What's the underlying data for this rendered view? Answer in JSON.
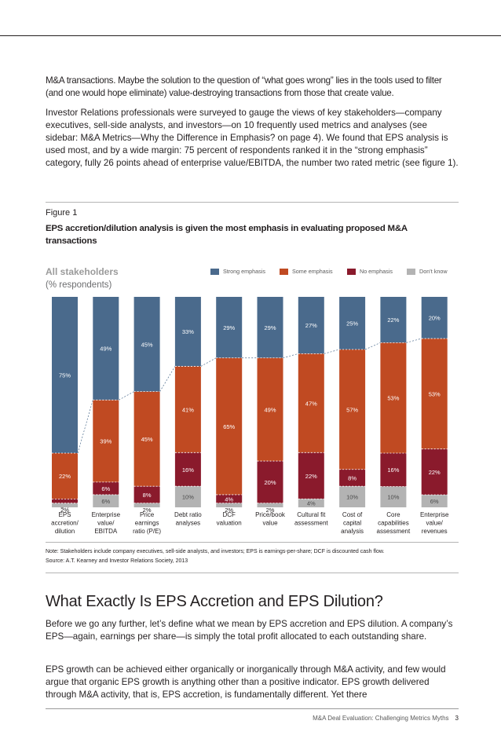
{
  "intro": {
    "para1": "M&A transactions. Maybe the solution to the question of “what goes wrong” lies in the tools used to filter (and one would hope eliminate) value-destroying transactions from those that create value.",
    "para2": "Investor Relations professionals were surveyed to gauge the views of key stakeholders—company executives, sell-side analysts, and investors—on 10 frequently used metrics and analyses (see sidebar: M&A Metrics—Why the Difference in Emphasis? on page 4). We found that EPS analysis is used most, and by a wide margin: 75 percent of respondents ranked it in the “strong emphasis” category, fully 26 points ahead of enterprise value/EBITDA, the number two rated metric (see figure 1)."
  },
  "figure": {
    "label": "Figure 1",
    "title": "EPS accretion/dilution analysis is given the most emphasis in evaluating proposed M&A transactions",
    "stakeholders_title": "All stakeholders",
    "stakeholders_sub": "(% respondents)",
    "note": "Note: Stakeholders include company executives, sell-side analysts, and investors; EPS is earnings-per-share; DCF is discounted cash flow.",
    "source": "Source: A.T. Kearney and Investor Relations Society, 2013"
  },
  "legend": [
    {
      "label": "Strong emphasis",
      "color": "#4a6a8c"
    },
    {
      "label": "Some emphasis",
      "color": "#c04a22"
    },
    {
      "label": "No emphasis",
      "color": "#8a1a2c"
    },
    {
      "label": "Don’t know",
      "color": "#b3b3b3"
    }
  ],
  "chart_data": {
    "type": "bar",
    "stacked": true,
    "categories": [
      [
        "EPS",
        "accretion/",
        "dilution"
      ],
      [
        "Enterprise",
        "value/",
        "EBITDA"
      ],
      [
        "Price",
        "earnings",
        "ratio (P/E)"
      ],
      [
        "Debt ratio",
        "analyses"
      ],
      [
        "DCF",
        "valuation"
      ],
      [
        "Price/book",
        "value"
      ],
      [
        "Cultural fit",
        "assessment"
      ],
      [
        "Cost of",
        "capital",
        "analysis"
      ],
      [
        "Core",
        "capabilities",
        "assessment"
      ],
      [
        "Enterprise",
        "value/",
        "revenues"
      ]
    ],
    "series": [
      {
        "name": "Strong emphasis",
        "color": "#4a6a8c",
        "label_color": "#ffffff",
        "values": [
          75,
          49,
          45,
          33,
          29,
          29,
          27,
          25,
          22,
          20
        ]
      },
      {
        "name": "Some emphasis",
        "color": "#c04a22",
        "label_color": "#ffffff",
        "values": [
          22,
          39,
          45,
          41,
          65,
          49,
          47,
          57,
          53,
          53
        ]
      },
      {
        "name": "No emphasis",
        "color": "#8a1a2c",
        "label_color": "#ffffff",
        "values": [
          2,
          6,
          8,
          16,
          4,
          20,
          22,
          8,
          16,
          22
        ]
      },
      {
        "name": "Don’t know",
        "color": "#b3b3b3",
        "label_color": "#4a4a4a",
        "values": [
          2,
          6,
          2,
          10,
          2,
          2,
          4,
          10,
          10,
          6
        ]
      }
    ],
    "ylim": [
      0,
      100
    ],
    "unit": "%"
  },
  "section": {
    "heading": "What Exactly Is EPS Accretion and EPS Dilution?",
    "para1": "Before we go any further, let’s define what we mean by EPS accretion and EPS dilution. A company’s EPS—again, earnings per share—is simply the total profit allocated to each outstanding share.",
    "para2": "EPS growth can be achieved either organically or inorganically through M&A activity, and few would argue that organic EPS growth is anything other than a positive indicator. EPS growth delivered through M&A activity, that is, EPS accretion, is fundamentally different. Yet there"
  },
  "footer": {
    "title": "M&A Deal Evaluation: Challenging Metrics Myths",
    "page": "3"
  }
}
